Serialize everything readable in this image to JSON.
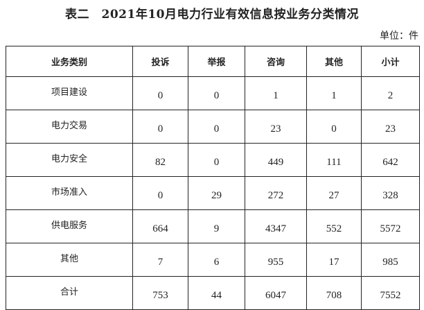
{
  "title": "表二　2021年10月电力行业有效信息按业务分类情况",
  "unit": "单位：件",
  "table": {
    "headers": [
      "业务类别",
      "投诉",
      "举报",
      "咨询",
      "其他",
      "小计"
    ],
    "rows": [
      {
        "category": "项目建设",
        "values": [
          "0",
          "0",
          "1",
          "1",
          "2"
        ]
      },
      {
        "category": "电力交易",
        "values": [
          "0",
          "0",
          "23",
          "0",
          "23"
        ]
      },
      {
        "category": "电力安全",
        "values": [
          "82",
          "0",
          "449",
          "111",
          "642"
        ]
      },
      {
        "category": "市场准入",
        "values": [
          "0",
          "29",
          "272",
          "27",
          "328"
        ]
      },
      {
        "category": "供电服务",
        "values": [
          "664",
          "9",
          "4347",
          "552",
          "5572"
        ]
      },
      {
        "category": "其他",
        "values": [
          "7",
          "6",
          "955",
          "17",
          "985"
        ]
      },
      {
        "category": "合计",
        "values": [
          "753",
          "44",
          "6047",
          "708",
          "7552"
        ]
      }
    ]
  }
}
